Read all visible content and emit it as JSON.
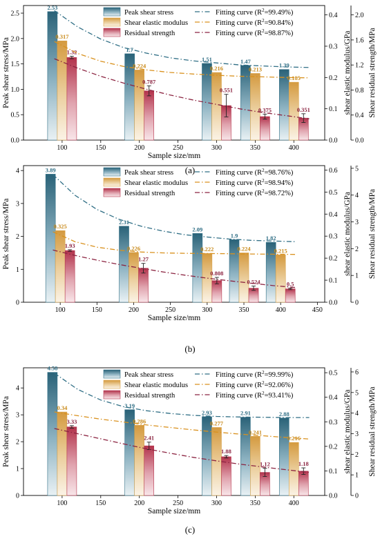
{
  "colors": {
    "peak": "#2f6e85",
    "shear": "#d9a34a",
    "residual": "#b7364f",
    "fit_peak": "#2f6e85",
    "fit_shear": "#d9911e",
    "fit_residual": "#8b2340",
    "label_peak": "#2f6e85",
    "label_shear": "#c98a1a",
    "label_residual": "#8b2340"
  },
  "chart_data": [
    {
      "type": "bar",
      "caption": "(a)",
      "xlabel": "Sample size/mm",
      "ylabel": "Peak shear stress/MPa",
      "y2label": "shear elastic modulus/GPa",
      "y3label": "Shear residual strength/MPa",
      "x_categories": [
        100,
        200,
        300,
        350,
        400
      ],
      "xlim": [
        50,
        440
      ],
      "xticks": [
        100,
        150,
        200,
        250,
        300,
        350,
        400
      ],
      "ylim": [
        0,
        2.65
      ],
      "yticks": [
        0.0,
        0.5,
        1.0,
        1.5,
        2.0,
        2.5
      ],
      "y_tick_labels": [
        "0.0",
        "0.5",
        "1.0",
        "1.5",
        "2.0",
        "2.5"
      ],
      "y2lim": [
        0,
        0.43
      ],
      "y2ticks": [
        0.0,
        0.1,
        0.2,
        0.3,
        0.4
      ],
      "y2_tick_labels": [
        "0.0",
        "0.1",
        "0.2",
        "0.3",
        "0.4"
      ],
      "y3lim": [
        0,
        2.15
      ],
      "y3ticks": [
        0.0,
        0.4,
        0.8,
        1.2,
        1.6,
        2.0
      ],
      "y3_tick_labels": [
        "0.0",
        "0.4",
        "0.8",
        "1.2",
        "1.6",
        "2.0"
      ],
      "series": [
        {
          "name": "Peak shear stress",
          "axis": "y",
          "values": [
            2.53,
            1.7,
            1.51,
            1.47,
            1.39
          ],
          "labels": [
            "2.53",
            "1.7",
            "1.51",
            "1.47",
            "1.39"
          ]
        },
        {
          "name": "Shear elastic modulus",
          "axis": "y2",
          "values": [
            0.317,
            0.224,
            0.216,
            0.213,
            0.185
          ],
          "labels": [
            "0.317",
            "0.224",
            "0.216",
            "0.213",
            "0.185"
          ]
        },
        {
          "name": "Residual strength",
          "axis": "y3",
          "values": [
            1.32,
            0.787,
            0.551,
            0.375,
            0.351
          ],
          "labels": [
            "1.32",
            "0.787",
            "0.551",
            "0.375",
            "0.351"
          ],
          "errors": [
            0.02,
            0.08,
            0.18,
            0.04,
            0.07
          ]
        }
      ],
      "fits": [
        {
          "name": "Fitting curve (R2=99.49%)",
          "r2": "99.49%",
          "axis": "y",
          "x": [
            90,
            120,
            150,
            180,
            210,
            240,
            270,
            300,
            330,
            360,
            390,
            420
          ],
          "y": [
            2.55,
            2.23,
            1.99,
            1.82,
            1.71,
            1.62,
            1.56,
            1.52,
            1.48,
            1.46,
            1.44,
            1.43
          ]
        },
        {
          "name": "Fitting curve (R2=90.84%)",
          "r2": "90.84%",
          "axis": "y2",
          "x": [
            90,
            120,
            150,
            180,
            210,
            240,
            270,
            300,
            330,
            360,
            390,
            420
          ],
          "y": [
            0.315,
            0.277,
            0.252,
            0.235,
            0.224,
            0.216,
            0.211,
            0.207,
            0.204,
            0.202,
            0.2,
            0.199
          ]
        },
        {
          "name": "Fitting curve (R2=98.87%)",
          "r2": "98.87%",
          "axis": "y3",
          "x": [
            90,
            120,
            150,
            180,
            210,
            240,
            270,
            300,
            330,
            360,
            390,
            420
          ],
          "y": [
            1.3,
            1.15,
            1.02,
            0.91,
            0.81,
            0.72,
            0.64,
            0.57,
            0.5,
            0.44,
            0.39,
            0.34
          ]
        }
      ],
      "legend": "top-center, two columns"
    },
    {
      "type": "bar",
      "caption": "(b)",
      "xlabel": "Sample size/mm",
      "ylabel": "Peak shear stress/MPa",
      "y2label": "shear elastic modulus/GPa",
      "y3label": "Shear residual strength/MPa",
      "x_categories": [
        100,
        200,
        300,
        350,
        400
      ],
      "xlim": [
        50,
        460
      ],
      "xticks": [
        100,
        150,
        200,
        250,
        300,
        350,
        400,
        450
      ],
      "ylim": [
        0,
        4.15
      ],
      "yticks": [
        0,
        1,
        2,
        3,
        4
      ],
      "y_tick_labels": [
        "0",
        "1",
        "2",
        "3",
        "4"
      ],
      "y2lim": [
        0,
        0.62
      ],
      "y2ticks": [
        0.0,
        0.1,
        0.2,
        0.3,
        0.4,
        0.5,
        0.6
      ],
      "y2_tick_labels": [
        "0.0",
        "0.1",
        "0.2",
        "0.3",
        "0.4",
        "0.5",
        "0.6"
      ],
      "y3lim": [
        0,
        5.1
      ],
      "y3ticks": [
        0,
        1,
        2,
        3,
        4,
        5
      ],
      "y3_tick_labels": [
        "0",
        "1",
        "2",
        "3",
        "4",
        "5"
      ],
      "series": [
        {
          "name": "Peak shear stress",
          "axis": "y",
          "values": [
            3.89,
            2.31,
            2.09,
            1.9,
            1.82
          ],
          "labels": [
            "3.89",
            "2.31",
            "2.09",
            "1.9",
            "1.82"
          ]
        },
        {
          "name": "Shear elastic modulus",
          "axis": "y2",
          "values": [
            0.325,
            0.226,
            0.222,
            0.224,
            0.215
          ],
          "labels": [
            "0.325",
            "0.226",
            "0.222",
            "0.224",
            "0.215"
          ]
        },
        {
          "name": "Residual strength",
          "axis": "y3",
          "values": [
            1.93,
            1.27,
            0.808,
            0.524,
            0.5
          ],
          "labels": [
            "1.93",
            "1.27",
            "0.808",
            "0.524",
            "0.5"
          ],
          "errors": [
            0.03,
            0.18,
            0.12,
            0.08,
            0.03
          ]
        }
      ],
      "fits": [
        {
          "name": "Fitting curve (R2=98.76%)",
          "r2": "98.76%",
          "axis": "y",
          "x": [
            90,
            120,
            150,
            180,
            210,
            240,
            270,
            300,
            330,
            360,
            390,
            420
          ],
          "y": [
            3.88,
            3.25,
            2.82,
            2.52,
            2.31,
            2.16,
            2.05,
            1.98,
            1.92,
            1.88,
            1.86,
            1.84
          ]
        },
        {
          "name": "Fitting curve (R2=98.94%)",
          "r2": "98.94%",
          "axis": "y2",
          "x": [
            90,
            120,
            150,
            180,
            210,
            240,
            270,
            300,
            330,
            360,
            390,
            420
          ],
          "y": [
            0.32,
            0.275,
            0.25,
            0.236,
            0.228,
            0.224,
            0.222,
            0.221,
            0.22,
            0.219,
            0.218,
            0.217
          ]
        },
        {
          "name": "Fitting curve (R2=98.72%)",
          "r2": "98.72%",
          "axis": "y3",
          "x": [
            90,
            120,
            150,
            180,
            210,
            240,
            270,
            300,
            330,
            360,
            390,
            420
          ],
          "y": [
            1.95,
            1.75,
            1.57,
            1.41,
            1.27,
            1.13,
            1.01,
            0.9,
            0.8,
            0.71,
            0.62,
            0.55
          ]
        }
      ],
      "legend": "top-center, two columns"
    },
    {
      "type": "bar",
      "caption": "(c)",
      "xlabel": "Sample size/mm",
      "ylabel": "Peak shear stress/MPa",
      "y2label": "shear elastic modulus/GPa",
      "y3label": "Shear residual strength/MPa",
      "x_categories": [
        100,
        200,
        300,
        350,
        400
      ],
      "xlim": [
        50,
        440
      ],
      "xticks": [
        100,
        150,
        200,
        250,
        300,
        350,
        400
      ],
      "ylim": [
        0,
        4.75
      ],
      "yticks": [
        0,
        1,
        2,
        3,
        4
      ],
      "y_tick_labels": [
        "0",
        "1",
        "2",
        "3",
        "4"
      ],
      "y2lim": [
        0,
        0.52
      ],
      "y2ticks": [
        0.0,
        0.1,
        0.2,
        0.3,
        0.4,
        0.5
      ],
      "y2_tick_labels": [
        "0.0",
        "0.1",
        "0.2",
        "0.3",
        "0.4",
        "0.5"
      ],
      "y3lim": [
        0,
        6.2
      ],
      "y3ticks": [
        0,
        1,
        2,
        3,
        4,
        5,
        6
      ],
      "y3_tick_labels": [
        "0",
        "1",
        "2",
        "3",
        "4",
        "5",
        "6"
      ],
      "series": [
        {
          "name": "Peak shear stress",
          "axis": "y",
          "values": [
            4.58,
            3.19,
            2.93,
            2.91,
            2.88
          ],
          "labels": [
            "4.58",
            "3.19",
            "2.93",
            "2.91",
            "2.88"
          ]
        },
        {
          "name": "Shear elastic modulus",
          "axis": "y2",
          "values": [
            0.34,
            0.286,
            0.277,
            0.241,
            0.216
          ],
          "labels": [
            "0.34",
            "0.286",
            "0.277",
            "0.241",
            "0.216"
          ]
        },
        {
          "name": "Residual strength",
          "axis": "y3",
          "values": [
            3.33,
            2.41,
            1.88,
            1.12,
            1.18
          ],
          "labels": [
            "3.33",
            "2.41",
            "1.88",
            "1.12",
            "1.18"
          ],
          "errors": [
            0.06,
            0.18,
            0.06,
            0.2,
            0.16
          ]
        }
      ],
      "fits": [
        {
          "name": "Fitting curve (R2=99.99%)",
          "r2": "99.99%",
          "axis": "y",
          "x": [
            90,
            120,
            150,
            180,
            210,
            240,
            270,
            300,
            330,
            360,
            390,
            420
          ],
          "y": [
            4.55,
            3.95,
            3.55,
            3.3,
            3.15,
            3.05,
            2.98,
            2.94,
            2.92,
            2.91,
            2.9,
            2.9
          ]
        },
        {
          "name": "Fitting curve (R2=92.06%)",
          "r2": "92.06%",
          "axis": "y2",
          "x": [
            90,
            120,
            150,
            180,
            210,
            240,
            270,
            300,
            330,
            360,
            390,
            420
          ],
          "y": [
            0.34,
            0.325,
            0.311,
            0.299,
            0.287,
            0.277,
            0.267,
            0.258,
            0.25,
            0.243,
            0.236,
            0.23
          ]
        },
        {
          "name": "Fitting curve (R2=93.41%)",
          "r2": "93.41%",
          "axis": "y3",
          "x": [
            90,
            120,
            150,
            180,
            210,
            240,
            270,
            300,
            330,
            360,
            390,
            420
          ],
          "y": [
            3.25,
            3.0,
            2.75,
            2.5,
            2.26,
            2.05,
            1.85,
            1.68,
            1.52,
            1.38,
            1.25,
            1.12
          ]
        }
      ],
      "legend": "top-center, two columns"
    }
  ]
}
